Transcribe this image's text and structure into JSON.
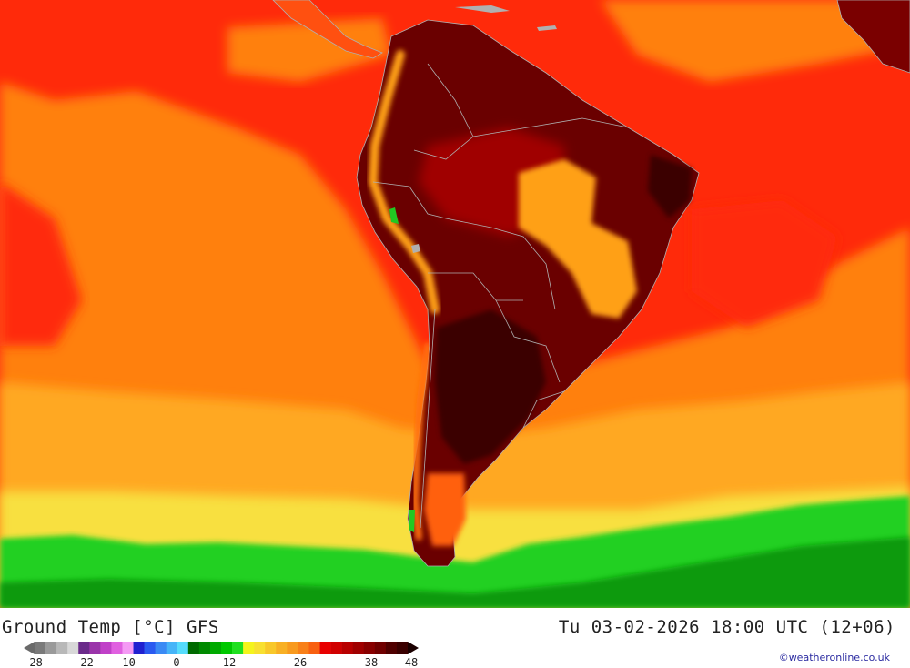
{
  "title": {
    "product": "Ground Temp [°C] GFS",
    "datetime": "Tu 03-02-2026 18:00 UTC (12+06)"
  },
  "credit": "©weatheronline.co.uk",
  "legend": {
    "ticks": [
      "-28",
      "-22",
      "-10",
      "0",
      "12",
      "26",
      "38",
      "48"
    ],
    "swatches": [
      "#7a7a7a",
      "#9a9a9a",
      "#b8b8b8",
      "#d8d8d8",
      "#6a2a8a",
      "#9a34aa",
      "#c040c8",
      "#e060e0",
      "#f49af4",
      "#2020d0",
      "#2a5af0",
      "#3a8af4",
      "#46b4f8",
      "#56dcfc",
      "#006a00",
      "#008a00",
      "#00aa00",
      "#00c800",
      "#20e020",
      "#f4f41c",
      "#f8e030",
      "#f8c82a",
      "#f8b024",
      "#f89a1e",
      "#f88018",
      "#f86010",
      "#e80000",
      "#d00000",
      "#b80000",
      "#a00000",
      "#880000",
      "#700000",
      "#500000",
      "#3a0000"
    ]
  },
  "map": {
    "colors": {
      "ocean_warm": "#ff2a0a",
      "ocean_orange": "#ff8010",
      "ocean_amber": "#ffa820",
      "ocean_yellow": "#f8e040",
      "ocean_green": "#20d020",
      "land_dark": "#6a0000",
      "land_darkest": "#3a0000",
      "land_mid": "#a00000",
      "highland": "#ffa018",
      "border": "#b0b0b0"
    }
  }
}
